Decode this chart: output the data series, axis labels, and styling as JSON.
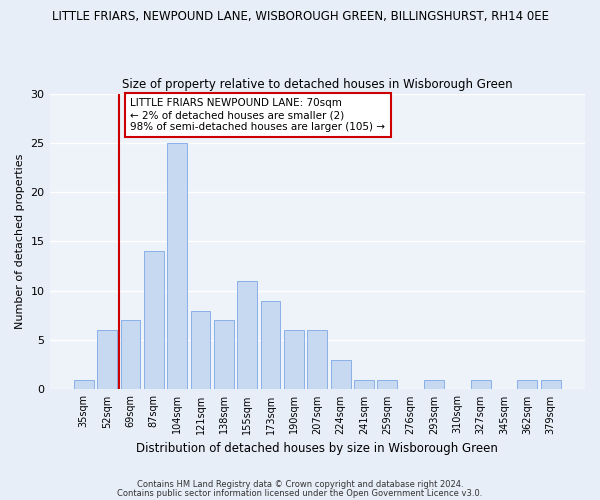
{
  "title1": "LITTLE FRIARS, NEWPOUND LANE, WISBOROUGH GREEN, BILLINGSHURST, RH14 0EE",
  "title2": "Size of property relative to detached houses in Wisborough Green",
  "xlabel": "Distribution of detached houses by size in Wisborough Green",
  "ylabel": "Number of detached properties",
  "categories": [
    "35sqm",
    "52sqm",
    "69sqm",
    "87sqm",
    "104sqm",
    "121sqm",
    "138sqm",
    "155sqm",
    "173sqm",
    "190sqm",
    "207sqm",
    "224sqm",
    "241sqm",
    "259sqm",
    "276sqm",
    "293sqm",
    "310sqm",
    "327sqm",
    "345sqm",
    "362sqm",
    "379sqm"
  ],
  "values": [
    1,
    6,
    7,
    14,
    25,
    8,
    7,
    11,
    9,
    6,
    6,
    3,
    1,
    1,
    0,
    1,
    0,
    1,
    0,
    1,
    1
  ],
  "bar_color": "#c6d9f0",
  "bar_edge_color": "#8aafe8",
  "vline_x": 1.5,
  "vline_color": "#cc0000",
  "annotation_text": "LITTLE FRIARS NEWPOUND LANE: 70sqm\n← 2% of detached houses are smaller (2)\n98% of semi-detached houses are larger (105) →",
  "annotation_box_color": "white",
  "annotation_box_edge": "#cc0000",
  "ylim": [
    0,
    30
  ],
  "yticks": [
    0,
    5,
    10,
    15,
    20,
    25,
    30
  ],
  "footer1": "Contains HM Land Registry data © Crown copyright and database right 2024.",
  "footer2": "Contains public sector information licensed under the Open Government Licence v3.0.",
  "bg_color": "#e8eef8",
  "plot_bg_color": "#eef3fa"
}
